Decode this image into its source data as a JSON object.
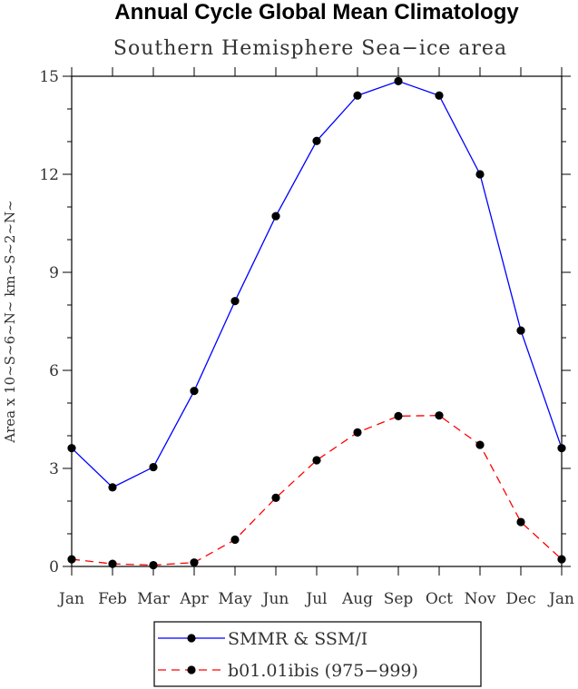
{
  "chart_data": {
    "type": "line",
    "title": "Annual Cycle Global Mean Climatology",
    "subtitle": "Southern Hemisphere Sea−ice area",
    "ylabel": "Area x 10~S~6~N~ km~S~2~N~",
    "xlabel": "",
    "ylim": [
      0,
      15
    ],
    "yticks": [
      "0",
      "3",
      "6",
      "9",
      "12",
      "15"
    ],
    "ytick_values": [
      0,
      3,
      6,
      9,
      12,
      15
    ],
    "categories": [
      "Jan",
      "Feb",
      "Mar",
      "Apr",
      "May",
      "Jun",
      "Jul",
      "Aug",
      "Sep",
      "Oct",
      "Nov",
      "Dec",
      "Jan"
    ],
    "series": [
      {
        "name": "SMMR & SSM/I",
        "color": "#0000ff",
        "dash": "solid",
        "values": [
          3.62,
          2.42,
          3.04,
          5.37,
          8.12,
          10.72,
          13.02,
          14.41,
          14.85,
          14.41,
          12.0,
          7.22,
          3.62
        ]
      },
      {
        "name": "b01.01ibis (975−999)",
        "color": "#ff0000",
        "dash": "dashed",
        "values": [
          0.22,
          0.08,
          0.04,
          0.12,
          0.82,
          2.1,
          3.25,
          4.1,
          4.6,
          4.62,
          3.72,
          1.36,
          0.22
        ]
      }
    ],
    "legend_position": "bottom-center"
  }
}
